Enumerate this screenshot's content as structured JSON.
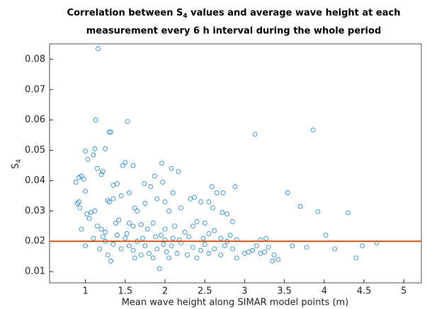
{
  "chart_data": {
    "type": "scatter",
    "title": [
      "Correlation between S",
      "4",
      " values and average wave height at each",
      "measurement every 6 h interval during the whole period"
    ],
    "xlabel": "Mean wave height along SIMAR model points (m)",
    "ylabel": [
      "S",
      "4"
    ],
    "xlim": [
      0.55,
      5.22
    ],
    "ylim": [
      0.0063,
      0.0851
    ],
    "xticks": [
      1,
      1.5,
      2,
      2.5,
      3,
      3.5,
      4,
      4.5,
      5
    ],
    "yticks": [
      0.01,
      0.02,
      0.03,
      0.04,
      0.05,
      0.06,
      0.07,
      0.08
    ],
    "marker_color": "#0072bd",
    "reference_line": {
      "value": 0.02,
      "color": "#d95319"
    },
    "x": [
      1.16,
      1.13,
      1.53,
      1.3,
      1.32,
      3.13,
      3.86,
      1.12,
      1.0,
      1.1,
      1.25,
      1.5,
      1.47,
      1.03,
      1.15,
      1.22,
      1.2,
      1.6,
      1.96,
      2.08,
      2.17,
      0.92,
      0.88,
      0.95,
      0.98,
      1.35,
      1.4,
      1.74,
      1.87,
      1.82,
      1.97,
      2.59,
      2.65,
      2.73,
      2.88,
      3.54,
      2.1,
      1.55,
      1.0,
      1.3,
      0.92,
      0.9,
      0.93,
      1.02,
      1.07,
      1.12,
      1.28,
      1.35,
      1.45,
      1.62,
      1.65,
      1.75,
      1.9,
      2.0,
      2.05,
      2.2,
      2.32,
      2.37,
      2.45,
      2.55,
      2.6,
      2.72,
      2.78,
      2.85,
      3.7,
      3.92,
      4.3,
      0.95,
      1.05,
      1.15,
      1.2,
      1.25,
      1.38,
      1.42,
      1.55,
      1.6,
      1.7,
      1.78,
      1.85,
      1.95,
      2.0,
      2.12,
      2.25,
      2.35,
      2.4,
      2.5,
      2.55,
      2.62,
      2.7,
      2.78,
      2.82,
      2.9,
      3.2,
      3.27,
      4.02,
      1.0,
      1.1,
      1.18,
      1.25,
      1.28,
      1.32,
      1.35,
      1.45,
      1.5,
      1.55,
      1.6,
      1.65,
      1.7,
      1.75,
      1.8,
      1.85,
      1.9,
      1.93,
      1.98,
      2.02,
      2.08,
      2.15,
      2.2,
      2.28,
      2.35,
      2.4,
      2.45,
      2.5,
      2.55,
      2.62,
      2.7,
      2.75,
      2.85,
      2.9,
      3.0,
      3.05,
      3.1,
      3.15,
      3.2,
      3.25,
      3.3,
      3.35,
      3.37,
      3.42,
      3.6,
      3.78,
      4.13,
      4.4,
      4.48,
      4.66,
      1.4,
      1.72,
      1.88,
      2.1,
      2.3,
      2.48,
      2.05,
      1.62,
      2.0,
      2.18,
      1.22,
      1.52
    ],
    "values": [
      0.0835,
      0.06,
      0.0595,
      0.056,
      0.056,
      0.0553,
      0.0567,
      0.0505,
      0.0497,
      0.0485,
      0.0505,
      0.046,
      0.045,
      0.047,
      0.044,
      0.043,
      0.042,
      0.045,
      0.0457,
      0.044,
      0.043,
      0.041,
      0.0395,
      0.0415,
      0.0405,
      0.0385,
      0.039,
      0.039,
      0.0415,
      0.038,
      0.0395,
      0.038,
      0.036,
      0.036,
      0.038,
      0.036,
      0.036,
      0.036,
      0.0365,
      0.033,
      0.033,
      0.0325,
      0.031,
      0.029,
      0.0295,
      0.03,
      0.0335,
      0.034,
      0.035,
      0.031,
      0.03,
      0.0325,
      0.034,
      0.033,
      0.03,
      0.031,
      0.034,
      0.0345,
      0.033,
      0.033,
      0.031,
      0.0295,
      0.029,
      0.0265,
      0.0315,
      0.0298,
      0.0294,
      0.024,
      0.0275,
      0.025,
      0.024,
      0.023,
      0.026,
      0.027,
      0.026,
      0.025,
      0.0255,
      0.024,
      0.026,
      0.022,
      0.024,
      0.025,
      0.023,
      0.025,
      0.0265,
      0.026,
      0.0225,
      0.0235,
      0.021,
      0.02,
      0.022,
      0.0205,
      0.0205,
      0.021,
      0.022,
      0.0185,
      0.021,
      0.0175,
      0.02,
      0.0155,
      0.0135,
      0.019,
      0.0175,
      0.021,
      0.0185,
      0.017,
      0.02,
      0.0155,
      0.0185,
      0.016,
      0.0145,
      0.0175,
      0.011,
      0.019,
      0.0165,
      0.0185,
      0.016,
      0.0195,
      0.0155,
      0.018,
      0.0145,
      0.017,
      0.019,
      0.016,
      0.0175,
      0.0155,
      0.0185,
      0.0175,
      0.0145,
      0.016,
      0.0165,
      0.017,
      0.0185,
      0.016,
      0.0165,
      0.018,
      0.0135,
      0.0155,
      0.014,
      0.0185,
      0.018,
      0.0175,
      0.0145,
      0.0185,
      0.0195,
      0.022,
      0.021,
      0.0215,
      0.021,
      0.0215,
      0.021,
      0.0145,
      0.0145,
      0.0205,
      0.0205,
      0.0215,
      0.0225
    ]
  }
}
